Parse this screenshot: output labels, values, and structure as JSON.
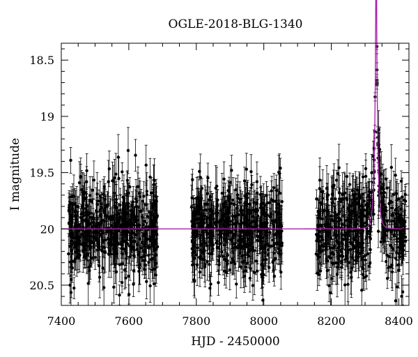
{
  "chart_data": {
    "type": "scatter",
    "title": "OGLE-2018-BLG-1340",
    "xlabel": "HJD - 2450000",
    "ylabel": "I magnitude",
    "xlim": [
      7400,
      8430
    ],
    "ylim": [
      20.68,
      18.35
    ],
    "y_inverted": true,
    "grid": false,
    "x_ticks": [
      7400,
      7600,
      7800,
      8000,
      8200,
      8400
    ],
    "y_ticks": [
      18.5,
      19,
      19.5,
      20,
      20.5
    ],
    "baseline_magnitude": 20.0,
    "peak": {
      "hjd": 8333,
      "magnitude": 18.85
    },
    "series": [
      {
        "kind": "photometry",
        "color": "#000000",
        "seasons": [
          {
            "start": 7420,
            "end": 7685,
            "mean_mag": 20.0,
            "scatter": 0.22,
            "errorbar": 0.15
          },
          {
            "start": 7785,
            "end": 8055,
            "mean_mag": 20.0,
            "scatter": 0.2,
            "errorbar": 0.15
          },
          {
            "start": 8155,
            "end": 8420,
            "mean_mag": 20.0,
            "scatter": 0.22,
            "errorbar": 0.15
          }
        ]
      },
      {
        "kind": "model",
        "color": "#aa22aa",
        "model": "microlensing",
        "t0": 8333,
        "tE": 9,
        "u0": 0.065,
        "baseline": 20.0
      }
    ]
  }
}
